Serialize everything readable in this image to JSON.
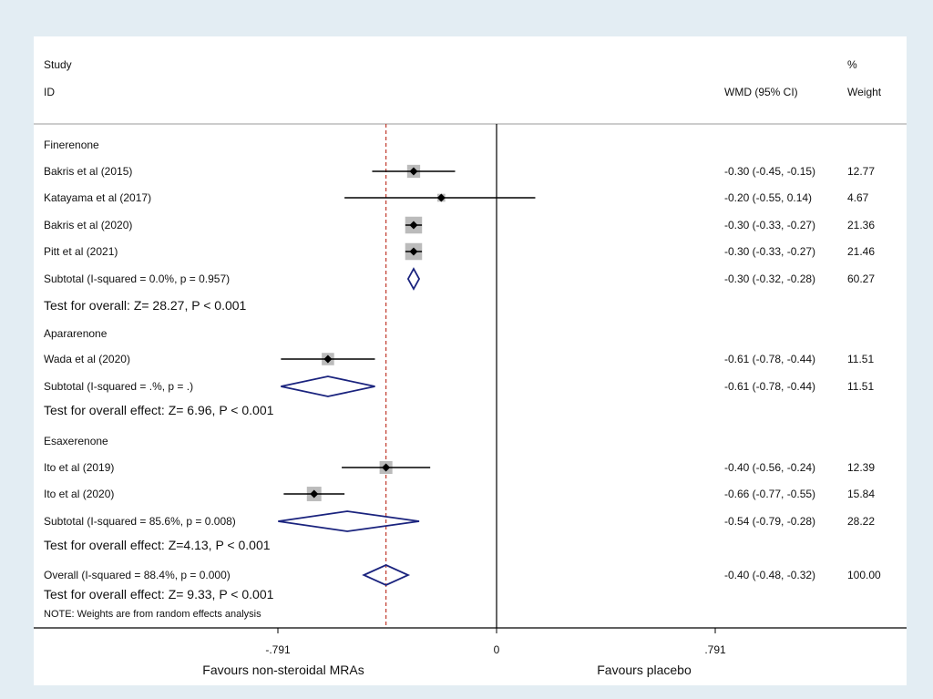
{
  "header": {
    "study": "Study",
    "id": "ID",
    "wmd_ci": "WMD (95% CI)",
    "pct": "%",
    "weight": "Weight"
  },
  "groups": [
    {
      "name": "Finerenone",
      "test": "Test for overall: Z= 28.27, P < 0.001"
    },
    {
      "name": "Apararenone",
      "test": "Test for overall effect: Z= 6.96, P < 0.001"
    },
    {
      "name": "Esaxerenone",
      "test": "Test for overall effect: Z=4.13, P < 0.001"
    }
  ],
  "overall_test": "Test for overall effect: Z= 9.33, P < 0.001",
  "note": "NOTE: Weights are from random effects analysis",
  "favours_left": "Favours non-steroidal MRAs",
  "favours_right": "Favours placebo",
  "colors": {
    "background": "#e3edf3",
    "diamond": "#1a237e",
    "reference_line": "#c0392b",
    "weight_box": "#bbbbbb"
  },
  "chart_data": {
    "type": "forest",
    "xlim": [
      -0.791,
      0.791
    ],
    "ticks": [
      -0.791,
      0,
      0.791
    ],
    "tick_labels": [
      "-.791",
      "0",
      ".791"
    ],
    "null_line": 0,
    "overall_line": -0.4,
    "rows": [
      {
        "kind": "study",
        "label": "Bakris et al (2015)",
        "est": -0.3,
        "lo": -0.45,
        "hi": -0.15,
        "ci": "-0.30 (-0.45, -0.15)",
        "weight": "12.77",
        "w": 12.77
      },
      {
        "kind": "study",
        "label": "Katayama et al (2017)",
        "est": -0.2,
        "lo": -0.55,
        "hi": 0.14,
        "ci": "-0.20 (-0.55, 0.14)",
        "weight": "4.67",
        "w": 4.67
      },
      {
        "kind": "study",
        "label": "Bakris et al (2020)",
        "est": -0.3,
        "lo": -0.33,
        "hi": -0.27,
        "ci": "-0.30 (-0.33, -0.27)",
        "weight": "21.36",
        "w": 21.36
      },
      {
        "kind": "study",
        "label": "Pitt et al (2021)",
        "est": -0.3,
        "lo": -0.33,
        "hi": -0.27,
        "ci": "-0.30 (-0.33, -0.27)",
        "weight": "21.46",
        "w": 21.46
      },
      {
        "kind": "subtotal",
        "label": "Subtotal  (I-squared = 0.0%, p = 0.957)",
        "est": -0.3,
        "lo": -0.32,
        "hi": -0.28,
        "ci": "-0.30 (-0.32, -0.28)",
        "weight": "60.27"
      },
      {
        "kind": "study",
        "label": "Wada et al (2020)",
        "est": -0.61,
        "lo": -0.78,
        "hi": -0.44,
        "ci": "-0.61 (-0.78, -0.44)",
        "weight": "11.51",
        "w": 11.51
      },
      {
        "kind": "subtotal",
        "label": "Subtotal  (I-squared = .%, p = .)",
        "est": -0.61,
        "lo": -0.78,
        "hi": -0.44,
        "ci": "-0.61 (-0.78, -0.44)",
        "weight": "11.51"
      },
      {
        "kind": "study",
        "label": "Ito et al (2019)",
        "est": -0.4,
        "lo": -0.56,
        "hi": -0.24,
        "ci": "-0.40 (-0.56, -0.24)",
        "weight": "12.39",
        "w": 12.39
      },
      {
        "kind": "study",
        "label": "Ito et al (2020)",
        "est": -0.66,
        "lo": -0.77,
        "hi": -0.55,
        "ci": "-0.66 (-0.77, -0.55)",
        "weight": "15.84",
        "w": 15.84
      },
      {
        "kind": "subtotal",
        "label": "Subtotal  (I-squared = 85.6%, p = 0.008)",
        "est": -0.54,
        "lo": -0.79,
        "hi": -0.28,
        "ci": "-0.54 (-0.79, -0.28)",
        "weight": "28.22"
      },
      {
        "kind": "overall",
        "label": "Overall  (I-squared = 88.4%, p = 0.000)",
        "est": -0.4,
        "lo": -0.48,
        "hi": -0.32,
        "ci": "-0.40 (-0.48, -0.32)",
        "weight": "100.00"
      }
    ]
  }
}
